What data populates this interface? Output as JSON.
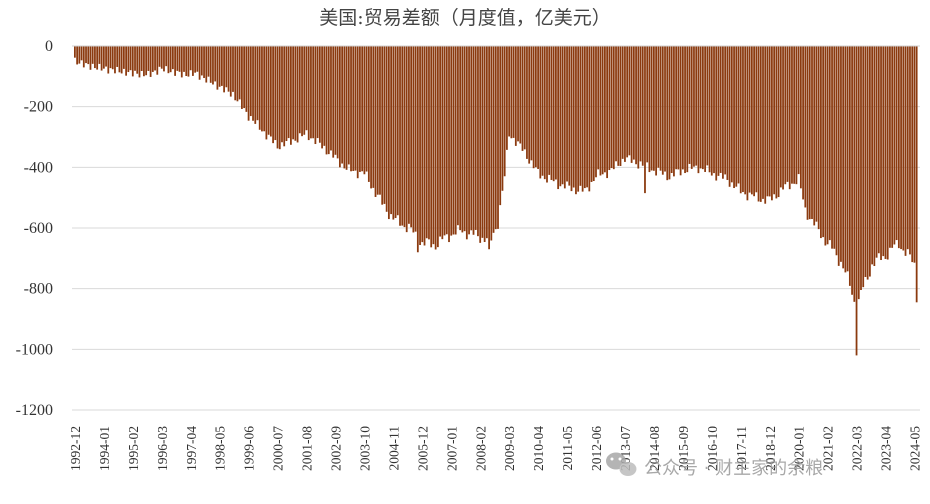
{
  "chart_data": {
    "type": "bar",
    "title": "美国:贸易差额（月度值，亿美元）",
    "xlabel": "",
    "ylabel": "",
    "ylim": [
      -1200,
      0
    ],
    "yticks": [
      0,
      -200,
      -400,
      -600,
      -800,
      -1000,
      -1200
    ],
    "ytick_labels": [
      "0",
      "-200",
      "-400",
      "-600",
      "-800",
      "-1000",
      "-1200"
    ],
    "xtick_labels": [
      "1992-12",
      "1994-01",
      "1995-02",
      "1996-03",
      "1997-04",
      "1998-05",
      "1999-06",
      "2000-07",
      "2001-08",
      "2002-09",
      "2003-10",
      "2004-11",
      "2005-12",
      "2007-01",
      "2008-02",
      "2009-03",
      "2010-04",
      "2011-05",
      "2012-06",
      "2013-07",
      "2014-08",
      "2015-09",
      "2016-10",
      "2017-11",
      "2018-12",
      "2020-01",
      "2021-02",
      "2022-03",
      "2023-04",
      "2024-05"
    ],
    "start": "1992-12",
    "end": "2024-06",
    "frequency": "monthly",
    "grid": true,
    "legend": "none",
    "bar_color": "#8b3a0f",
    "series": [
      {
        "anchors": [
          [
            "1992-12",
            -50
          ],
          [
            "1993-06",
            -65
          ],
          [
            "1994-01",
            -75
          ],
          [
            "1995-02",
            -90
          ],
          [
            "1995-09",
            -95
          ],
          [
            "1996-03",
            -75
          ],
          [
            "1997-01",
            -95
          ],
          [
            "1997-06",
            -90
          ],
          [
            "1998-05",
            -135
          ],
          [
            "1998-11",
            -160
          ],
          [
            "1999-06",
            -230
          ],
          [
            "2000-01",
            -285
          ],
          [
            "2000-07",
            -330
          ],
          [
            "2001-01",
            -315
          ],
          [
            "2001-08",
            -290
          ],
          [
            "2002-03",
            -330
          ],
          [
            "2002-09",
            -370
          ],
          [
            "2003-03",
            -410
          ],
          [
            "2003-10",
            -420
          ],
          [
            "2004-06",
            -520
          ],
          [
            "2004-11",
            -570
          ],
          [
            "2005-06",
            -600
          ],
          [
            "2005-12",
            -650
          ],
          [
            "2006-06",
            -655
          ],
          [
            "2007-01",
            -620
          ],
          [
            "2007-06",
            -610
          ],
          [
            "2008-02",
            -630
          ],
          [
            "2008-07",
            -640
          ],
          [
            "2008-10",
            -580
          ],
          [
            "2009-01",
            -430
          ],
          [
            "2009-03",
            -290
          ],
          [
            "2009-09",
            -340
          ],
          [
            "2010-04",
            -420
          ],
          [
            "2010-10",
            -445
          ],
          [
            "2011-05",
            -465
          ],
          [
            "2012-01",
            -480
          ],
          [
            "2012-06",
            -430
          ],
          [
            "2013-01",
            -410
          ],
          [
            "2013-07",
            -370
          ],
          [
            "2014-02",
            -390
          ],
          [
            "2014-08",
            -410
          ],
          [
            "2015-03",
            -430
          ],
          [
            "2015-09",
            -410
          ],
          [
            "2016-04",
            -400
          ],
          [
            "2016-10",
            -420
          ],
          [
            "2017-05",
            -440
          ],
          [
            "2017-11",
            -480
          ],
          [
            "2018-06",
            -500
          ],
          [
            "2018-12",
            -510
          ],
          [
            "2019-06",
            -470
          ],
          [
            "2020-01",
            -440
          ],
          [
            "2020-04",
            -540
          ],
          [
            "2020-09",
            -600
          ],
          [
            "2021-02",
            -650
          ],
          [
            "2021-08",
            -710
          ],
          [
            "2021-12",
            -790
          ],
          [
            "2022-03",
            -860
          ],
          [
            "2022-06",
            -800
          ],
          [
            "2022-10",
            -720
          ],
          [
            "2023-04",
            -690
          ],
          [
            "2023-10",
            -650
          ],
          [
            "2024-05",
            -720
          ],
          [
            "2024-06",
            -800
          ]
        ],
        "spikes": [
          [
            "2022-03",
            -1020
          ],
          [
            "2024-06",
            -845
          ],
          [
            "2008-06",
            -670
          ],
          [
            "2005-10",
            -680
          ],
          [
            "2014-04",
            -485
          ]
        ]
      }
    ]
  },
  "watermark": {
    "text": "公众号 · 财主家的余粮"
  }
}
